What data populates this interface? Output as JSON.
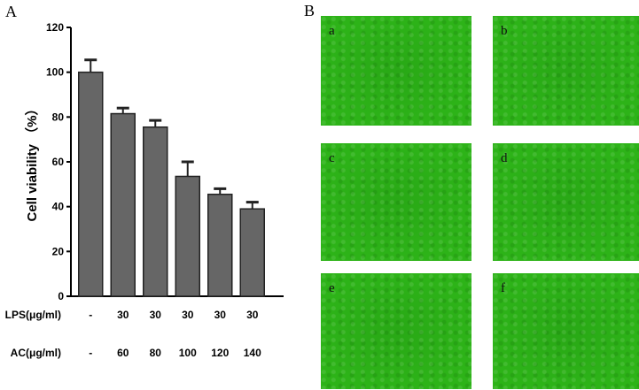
{
  "panel_a": {
    "letter": "A"
  },
  "panel_b": {
    "letter": "B",
    "images": [
      {
        "label": "a"
      },
      {
        "label": "b"
      },
      {
        "label": "c"
      },
      {
        "label": "d"
      },
      {
        "label": "e"
      },
      {
        "label": "f"
      }
    ],
    "image_color": "#2db318"
  },
  "chart_data": {
    "type": "bar",
    "title": "",
    "xlabel": "",
    "ylabel": "Cell viability （%）",
    "ylim": [
      0,
      120
    ],
    "yticks": [
      0,
      20,
      40,
      60,
      80,
      100,
      120
    ],
    "categories": [
      "-/-",
      "30/60",
      "30/80",
      "30/100",
      "30/120",
      "30/140"
    ],
    "values": [
      100,
      81.5,
      75.5,
      53.5,
      45.5,
      39
    ],
    "errors": [
      5.5,
      2.5,
      3,
      6.5,
      2.5,
      3
    ],
    "bar_color": "#666666",
    "rows": [
      {
        "label": "LPS(μg/ml)",
        "values": [
          "-",
          "30",
          "30",
          "30",
          "30",
          "30"
        ]
      },
      {
        "label": "AC(μg/ml)",
        "values": [
          "-",
          "60",
          "80",
          "100",
          "120",
          "140"
        ]
      }
    ]
  }
}
